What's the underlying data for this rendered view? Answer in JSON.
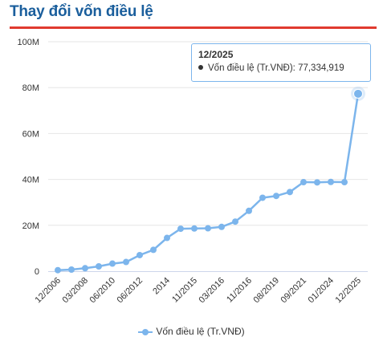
{
  "title": "Thay đổi vốn điều lệ",
  "colors": {
    "title": "#1a5e9c",
    "rule": "#e03a2f",
    "series": "#7cb5ec"
  },
  "chart_data": {
    "type": "line",
    "ylim": [
      0,
      100000000
    ],
    "yticks": [
      "0",
      "20M",
      "40M",
      "60M",
      "80M",
      "100M"
    ],
    "grid": true,
    "legend_placement": "bottom-center",
    "x": [
      "12/2006",
      "",
      "03/2008",
      "",
      "06/2010",
      "",
      "06/2012",
      "",
      "2014",
      "",
      "11/2015",
      "",
      "03/2016",
      "",
      "11/2016",
      "",
      "08/2019",
      "",
      "09/2021",
      "",
      "01/2024",
      "",
      "12/2025"
    ],
    "series": [
      {
        "name": "Vốn điều lệ (Tr.VNĐ)",
        "values": [
          450000,
          700000,
          1300000,
          2100000,
          3300000,
          4000000,
          7000000,
          9300000,
          14500000,
          18500000,
          18600000,
          18700000,
          19300000,
          21600000,
          26300000,
          32000000,
          32800000,
          34500000,
          38800000,
          38700000,
          38900000,
          38800000,
          77334919
        ]
      }
    ]
  },
  "tooltip": {
    "title": "12/2025",
    "series_label": "Vốn điều lệ (Tr.VNĐ)",
    "value": "77,334,919"
  },
  "legend": {
    "label": "Vốn điều lệ (Tr.VNĐ)"
  }
}
